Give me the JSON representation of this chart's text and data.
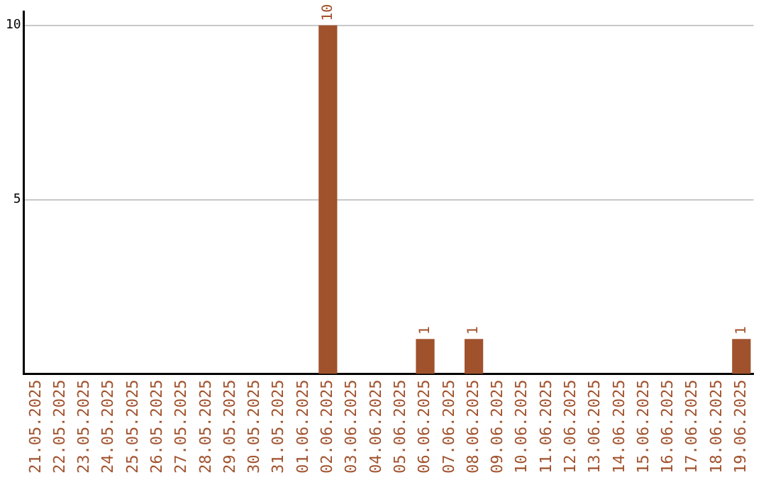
{
  "chart_data": {
    "type": "bar",
    "categories": [
      "21.05.2025",
      "22.05.2025",
      "23.05.2025",
      "24.05.2025",
      "25.05.2025",
      "26.05.2025",
      "27.05.2025",
      "28.05.2025",
      "29.05.2025",
      "30.05.2025",
      "31.05.2025",
      "01.06.2025",
      "02.06.2025",
      "03.06.2025",
      "04.06.2025",
      "05.06.2025",
      "06.06.2025",
      "07.06.2025",
      "08.06.2025",
      "09.06.2025",
      "10.06.2025",
      "11.06.2025",
      "12.06.2025",
      "13.06.2025",
      "14.06.2025",
      "15.06.2025",
      "16.06.2025",
      "17.06.2025",
      "18.06.2025",
      "19.06.2025"
    ],
    "values": [
      0,
      0,
      0,
      0,
      0,
      0,
      0,
      0,
      0,
      0,
      0,
      0,
      10,
      0,
      0,
      0,
      1,
      0,
      1,
      0,
      0,
      0,
      0,
      0,
      0,
      0,
      0,
      0,
      0,
      1
    ],
    "value_labels": [
      null,
      null,
      null,
      null,
      null,
      null,
      null,
      null,
      null,
      null,
      null,
      null,
      "10",
      null,
      null,
      null,
      "1",
      null,
      "1",
      null,
      null,
      null,
      null,
      null,
      null,
      null,
      null,
      null,
      null,
      "1"
    ],
    "color": "#a0522d",
    "ylim": [
      0,
      10.4
    ],
    "yticks": [
      5,
      10
    ],
    "grid": "y",
    "legend": false
  }
}
